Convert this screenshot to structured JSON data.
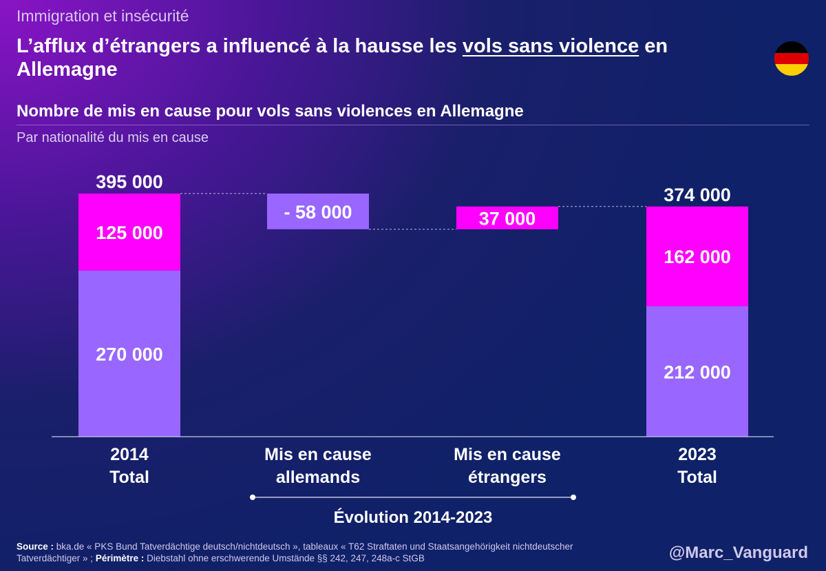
{
  "header": {
    "kicker": "Immigration et insécurité",
    "title_pre": "L’afflux d’étrangers a influencé à la hausse les ",
    "title_underlined": "vols sans violence",
    "title_post": " en Allemagne",
    "subtitle": "Nombre de mis en cause pour vols sans violences en Allemagne",
    "subnote": "Par nationalité du mis en cause"
  },
  "flag": {
    "name": "germany-flag",
    "colors": [
      "#000000",
      "#dd0000",
      "#ffce00"
    ]
  },
  "colors": {
    "german": "#9966ff",
    "foreign": "#ff00ff",
    "axis": "#c8c8e8",
    "connector": "#b0b8e0"
  },
  "chart_data": {
    "type": "waterfall",
    "ylim": [
      0,
      400000
    ],
    "categories": [
      {
        "label_line1": "2014",
        "label_line2": "Total"
      },
      {
        "label_line1": "Mis en cause",
        "label_line2": "allemands"
      },
      {
        "label_line1": "Mis en cause",
        "label_line2": "étrangers"
      },
      {
        "label_line1": "2023",
        "label_line2": "Total"
      }
    ],
    "bars": [
      {
        "kind": "total",
        "segments": [
          {
            "series": "Allemands",
            "value": 270000,
            "label": "270 000"
          },
          {
            "series": "Étrangers",
            "value": 125000,
            "label": "125 000"
          }
        ],
        "total": 395000,
        "total_label": "395 000"
      },
      {
        "kind": "delta",
        "series": "Allemands",
        "start": 395000,
        "value": -58000,
        "label": "- 58 000"
      },
      {
        "kind": "delta",
        "series": "Étrangers",
        "start": 337000,
        "value": 37000,
        "label": "37 000"
      },
      {
        "kind": "total",
        "segments": [
          {
            "series": "Allemands",
            "value": 212000,
            "label": "212 000"
          },
          {
            "series": "Étrangers",
            "value": 162000,
            "label": "162 000"
          }
        ],
        "total": 374000,
        "total_label": "374 000"
      }
    ],
    "bracket_label": "Évolution 2014-2023"
  },
  "footer": {
    "source_label": "Source :",
    "source_text": " bka.de « PKS Bund Tatverdächtige deutsch/nichtdeutsch », tableaux « T62 Straftaten und Staatsangehörigkeit nichtdeutscher Tatverdächtiger »  ; ",
    "perimetre_label": "Périmètre :",
    "perimetre_text": " Diebstahl ohne erschwerende Umstände §§ 242, 247, 248a-c StGB",
    "handle": "@Marc_Vanguard"
  }
}
